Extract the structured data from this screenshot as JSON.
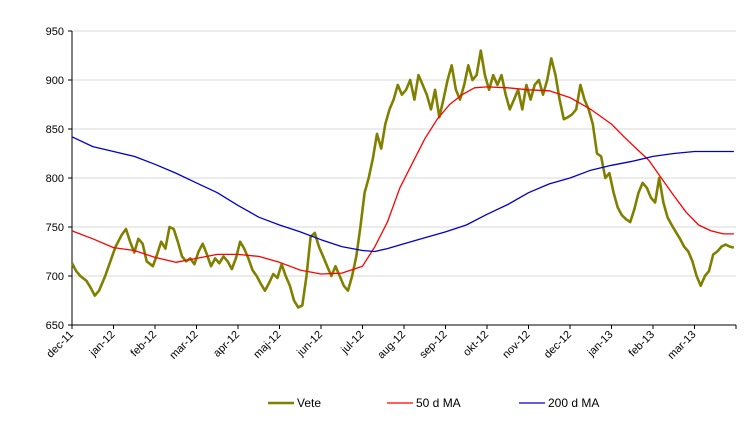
{
  "chart_data": {
    "type": "line",
    "title": "",
    "xlabel": "",
    "ylabel": "",
    "ylim": [
      650,
      950
    ],
    "yticks": [
      "650",
      "700",
      "750",
      "800",
      "850",
      "900",
      "950"
    ],
    "xticks": [
      "dec-11",
      "jan-12",
      "feb-12",
      "mar-12",
      "apr-12",
      "maj-12",
      "jun-12",
      "jul-12",
      "aug-12",
      "sep-12",
      "okt-12",
      "nov-12",
      "dec-12",
      "jan-13",
      "feb-13",
      "mar-13"
    ],
    "x_note_months_index": "x values are months since dec-11 (0 = dec-11, 1 = jan-12, ...)",
    "grid": "horizontal",
    "legend_position": "bottom",
    "series": [
      {
        "name": "Vete",
        "color": "#808000",
        "points": [
          [
            0.0,
            713
          ],
          [
            0.1,
            705
          ],
          [
            0.2,
            700
          ],
          [
            0.35,
            695
          ],
          [
            0.45,
            688
          ],
          [
            0.55,
            680
          ],
          [
            0.65,
            685
          ],
          [
            0.8,
            700
          ],
          [
            0.95,
            718
          ],
          [
            1.05,
            730
          ],
          [
            1.2,
            742
          ],
          [
            1.3,
            748
          ],
          [
            1.4,
            735
          ],
          [
            1.5,
            724
          ],
          [
            1.6,
            738
          ],
          [
            1.7,
            733
          ],
          [
            1.8,
            715
          ],
          [
            1.95,
            710
          ],
          [
            2.05,
            722
          ],
          [
            2.15,
            735
          ],
          [
            2.25,
            728
          ],
          [
            2.35,
            750
          ],
          [
            2.45,
            748
          ],
          [
            2.55,
            735
          ],
          [
            2.65,
            720
          ],
          [
            2.75,
            715
          ],
          [
            2.85,
            718
          ],
          [
            2.95,
            712
          ],
          [
            3.05,
            725
          ],
          [
            3.15,
            733
          ],
          [
            3.25,
            722
          ],
          [
            3.35,
            710
          ],
          [
            3.45,
            718
          ],
          [
            3.55,
            713
          ],
          [
            3.65,
            720
          ],
          [
            3.75,
            715
          ],
          [
            3.85,
            707
          ],
          [
            3.95,
            718
          ],
          [
            4.05,
            735
          ],
          [
            4.15,
            728
          ],
          [
            4.25,
            718
          ],
          [
            4.35,
            706
          ],
          [
            4.45,
            700
          ],
          [
            4.55,
            692
          ],
          [
            4.65,
            685
          ],
          [
            4.75,
            693
          ],
          [
            4.85,
            702
          ],
          [
            4.95,
            698
          ],
          [
            5.05,
            712
          ],
          [
            5.15,
            700
          ],
          [
            5.25,
            690
          ],
          [
            5.35,
            675
          ],
          [
            5.45,
            668
          ],
          [
            5.55,
            670
          ],
          [
            5.65,
            700
          ],
          [
            5.75,
            740
          ],
          [
            5.85,
            744
          ],
          [
            5.95,
            730
          ],
          [
            6.05,
            720
          ],
          [
            6.15,
            710
          ],
          [
            6.25,
            700
          ],
          [
            6.35,
            710
          ],
          [
            6.45,
            700
          ],
          [
            6.55,
            690
          ],
          [
            6.65,
            685
          ],
          [
            6.75,
            700
          ],
          [
            6.85,
            720
          ],
          [
            6.95,
            750
          ],
          [
            7.05,
            785
          ],
          [
            7.15,
            800
          ],
          [
            7.25,
            820
          ],
          [
            7.35,
            845
          ],
          [
            7.45,
            830
          ],
          [
            7.55,
            855
          ],
          [
            7.65,
            870
          ],
          [
            7.75,
            880
          ],
          [
            7.85,
            895
          ],
          [
            7.95,
            885
          ],
          [
            8.05,
            890
          ],
          [
            8.15,
            900
          ],
          [
            8.25,
            880
          ],
          [
            8.35,
            905
          ],
          [
            8.45,
            895
          ],
          [
            8.55,
            885
          ],
          [
            8.65,
            870
          ],
          [
            8.75,
            890
          ],
          [
            8.85,
            862
          ],
          [
            8.95,
            880
          ],
          [
            9.05,
            900
          ],
          [
            9.15,
            915
          ],
          [
            9.25,
            890
          ],
          [
            9.35,
            880
          ],
          [
            9.45,
            895
          ],
          [
            9.55,
            915
          ],
          [
            9.65,
            900
          ],
          [
            9.75,
            905
          ],
          [
            9.85,
            930
          ],
          [
            9.95,
            905
          ],
          [
            10.05,
            890
          ],
          [
            10.15,
            905
          ],
          [
            10.25,
            895
          ],
          [
            10.35,
            905
          ],
          [
            10.45,
            885
          ],
          [
            10.55,
            870
          ],
          [
            10.65,
            880
          ],
          [
            10.75,
            890
          ],
          [
            10.85,
            870
          ],
          [
            10.95,
            895
          ],
          [
            11.05,
            880
          ],
          [
            11.15,
            895
          ],
          [
            11.25,
            900
          ],
          [
            11.35,
            885
          ],
          [
            11.45,
            900
          ],
          [
            11.55,
            922
          ],
          [
            11.65,
            905
          ],
          [
            11.75,
            880
          ],
          [
            11.85,
            860
          ],
          [
            11.95,
            862
          ],
          [
            12.05,
            865
          ],
          [
            12.15,
            870
          ],
          [
            12.25,
            895
          ],
          [
            12.35,
            880
          ],
          [
            12.45,
            870
          ],
          [
            12.55,
            855
          ],
          [
            12.65,
            825
          ],
          [
            12.75,
            822
          ],
          [
            12.85,
            800
          ],
          [
            12.95,
            805
          ],
          [
            13.05,
            785
          ],
          [
            13.15,
            770
          ],
          [
            13.25,
            762
          ],
          [
            13.35,
            758
          ],
          [
            13.45,
            755
          ],
          [
            13.55,
            768
          ],
          [
            13.65,
            785
          ],
          [
            13.75,
            795
          ],
          [
            13.85,
            790
          ],
          [
            13.95,
            780
          ],
          [
            14.05,
            775
          ],
          [
            14.15,
            800
          ],
          [
            14.25,
            775
          ],
          [
            14.35,
            760
          ],
          [
            14.45,
            752
          ],
          [
            14.55,
            745
          ],
          [
            14.65,
            738
          ],
          [
            14.75,
            730
          ],
          [
            14.85,
            725
          ],
          [
            14.95,
            715
          ],
          [
            15.05,
            700
          ],
          [
            15.15,
            690
          ],
          [
            15.25,
            700
          ],
          [
            15.35,
            705
          ],
          [
            15.45,
            722
          ],
          [
            15.55,
            725
          ],
          [
            15.65,
            730
          ],
          [
            15.75,
            732
          ],
          [
            15.85,
            730
          ],
          [
            15.95,
            729
          ]
        ]
      },
      {
        "name": "50 d MA",
        "color": "#ff0000",
        "points": [
          [
            0.0,
            746
          ],
          [
            0.5,
            738
          ],
          [
            1.0,
            729
          ],
          [
            1.5,
            726
          ],
          [
            2.0,
            719
          ],
          [
            2.5,
            714
          ],
          [
            3.0,
            718
          ],
          [
            3.5,
            722
          ],
          [
            4.0,
            722
          ],
          [
            4.5,
            720
          ],
          [
            5.0,
            714
          ],
          [
            5.5,
            706
          ],
          [
            6.0,
            702
          ],
          [
            6.5,
            703
          ],
          [
            7.0,
            710
          ],
          [
            7.3,
            730
          ],
          [
            7.6,
            755
          ],
          [
            7.9,
            790
          ],
          [
            8.2,
            815
          ],
          [
            8.5,
            840
          ],
          [
            8.8,
            860
          ],
          [
            9.1,
            875
          ],
          [
            9.4,
            885
          ],
          [
            9.7,
            892
          ],
          [
            10.0,
            893
          ],
          [
            10.5,
            892
          ],
          [
            11.0,
            890
          ],
          [
            11.5,
            889
          ],
          [
            12.0,
            882
          ],
          [
            12.5,
            870
          ],
          [
            13.0,
            855
          ],
          [
            13.3,
            842
          ],
          [
            13.6,
            830
          ],
          [
            13.9,
            818
          ],
          [
            14.2,
            800
          ],
          [
            14.5,
            782
          ],
          [
            14.8,
            765
          ],
          [
            15.1,
            752
          ],
          [
            15.4,
            746
          ],
          [
            15.7,
            743
          ],
          [
            15.95,
            743
          ]
        ]
      },
      {
        "name": "200 d MA",
        "color": "#0000cc",
        "points": [
          [
            0.0,
            842
          ],
          [
            0.5,
            832
          ],
          [
            1.0,
            827
          ],
          [
            1.5,
            822
          ],
          [
            2.0,
            814
          ],
          [
            2.5,
            805
          ],
          [
            3.0,
            795
          ],
          [
            3.5,
            785
          ],
          [
            4.0,
            772
          ],
          [
            4.5,
            760
          ],
          [
            5.0,
            752
          ],
          [
            5.5,
            745
          ],
          [
            6.0,
            737
          ],
          [
            6.5,
            730
          ],
          [
            7.0,
            726
          ],
          [
            7.3,
            725
          ],
          [
            7.6,
            728
          ],
          [
            8.0,
            733
          ],
          [
            8.5,
            739
          ],
          [
            9.0,
            745
          ],
          [
            9.5,
            752
          ],
          [
            10.0,
            763
          ],
          [
            10.5,
            773
          ],
          [
            11.0,
            785
          ],
          [
            11.5,
            794
          ],
          [
            12.0,
            800
          ],
          [
            12.5,
            808
          ],
          [
            13.0,
            813
          ],
          [
            13.5,
            817
          ],
          [
            14.0,
            822
          ],
          [
            14.5,
            825
          ],
          [
            15.0,
            827
          ],
          [
            15.5,
            827
          ],
          [
            15.95,
            827
          ]
        ]
      }
    ]
  }
}
